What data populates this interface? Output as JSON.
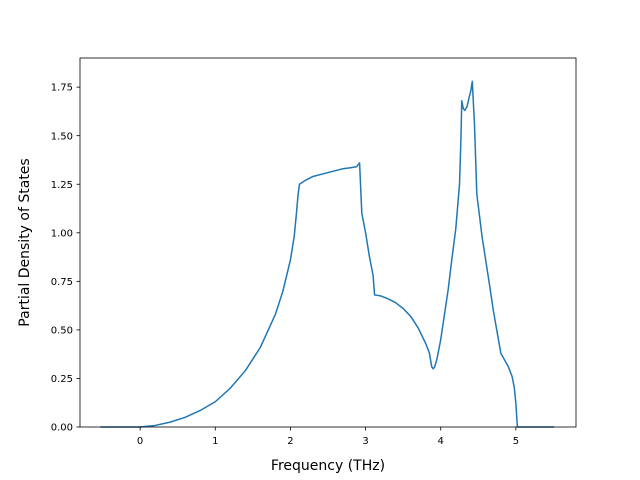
{
  "chart_data": {
    "type": "line",
    "title": "",
    "xlabel": "Frequency (THz)",
    "ylabel": "Partial Density of States",
    "xlim": [
      -0.8,
      5.8
    ],
    "ylim": [
      0.0,
      1.9
    ],
    "xticks": [
      0,
      1,
      2,
      3,
      4,
      5
    ],
    "xtick_labels": [
      "0",
      "1",
      "2",
      "3",
      "4",
      "5"
    ],
    "yticks": [
      0.0,
      0.25,
      0.5,
      0.75,
      1.0,
      1.25,
      1.5,
      1.75
    ],
    "ytick_labels": [
      "0.00",
      "0.25",
      "0.50",
      "0.75",
      "1.00",
      "1.25",
      "1.50",
      "1.75"
    ],
    "grid": false,
    "legend": "none",
    "series": [
      {
        "color": "#1f77b4",
        "x": [
          -0.52,
          0.0,
          0.2,
          0.4,
          0.6,
          0.8,
          1.0,
          1.2,
          1.4,
          1.6,
          1.8,
          1.9,
          2.0,
          2.05,
          2.08,
          2.1,
          2.12,
          2.2,
          2.3,
          2.5,
          2.7,
          2.8,
          2.88,
          2.9,
          2.92,
          2.95,
          3.0,
          3.05,
          3.1,
          3.12,
          3.2,
          3.3,
          3.4,
          3.5,
          3.6,
          3.7,
          3.8,
          3.85,
          3.88,
          3.9,
          3.92,
          3.95,
          4.0,
          4.05,
          4.1,
          4.15,
          4.2,
          4.25,
          4.27,
          4.28,
          4.3,
          4.32,
          4.35,
          4.38,
          4.4,
          4.42,
          4.45,
          4.48,
          4.55,
          4.65,
          4.7,
          4.8,
          4.9,
          4.95,
          4.98,
          5.0,
          5.02,
          5.5
        ],
        "y": [
          0.0,
          0.0,
          0.008,
          0.025,
          0.05,
          0.085,
          0.13,
          0.2,
          0.29,
          0.41,
          0.58,
          0.7,
          0.86,
          0.98,
          1.1,
          1.19,
          1.25,
          1.27,
          1.29,
          1.31,
          1.33,
          1.335,
          1.34,
          1.35,
          1.36,
          1.1,
          1.0,
          0.88,
          0.78,
          0.68,
          0.675,
          0.66,
          0.64,
          0.61,
          0.57,
          0.51,
          0.43,
          0.38,
          0.31,
          0.3,
          0.31,
          0.35,
          0.45,
          0.58,
          0.71,
          0.87,
          1.02,
          1.25,
          1.5,
          1.68,
          1.64,
          1.63,
          1.65,
          1.7,
          1.73,
          1.78,
          1.55,
          1.2,
          0.98,
          0.73,
          0.6,
          0.38,
          0.31,
          0.26,
          0.2,
          0.12,
          0.0,
          0.0
        ]
      }
    ]
  }
}
